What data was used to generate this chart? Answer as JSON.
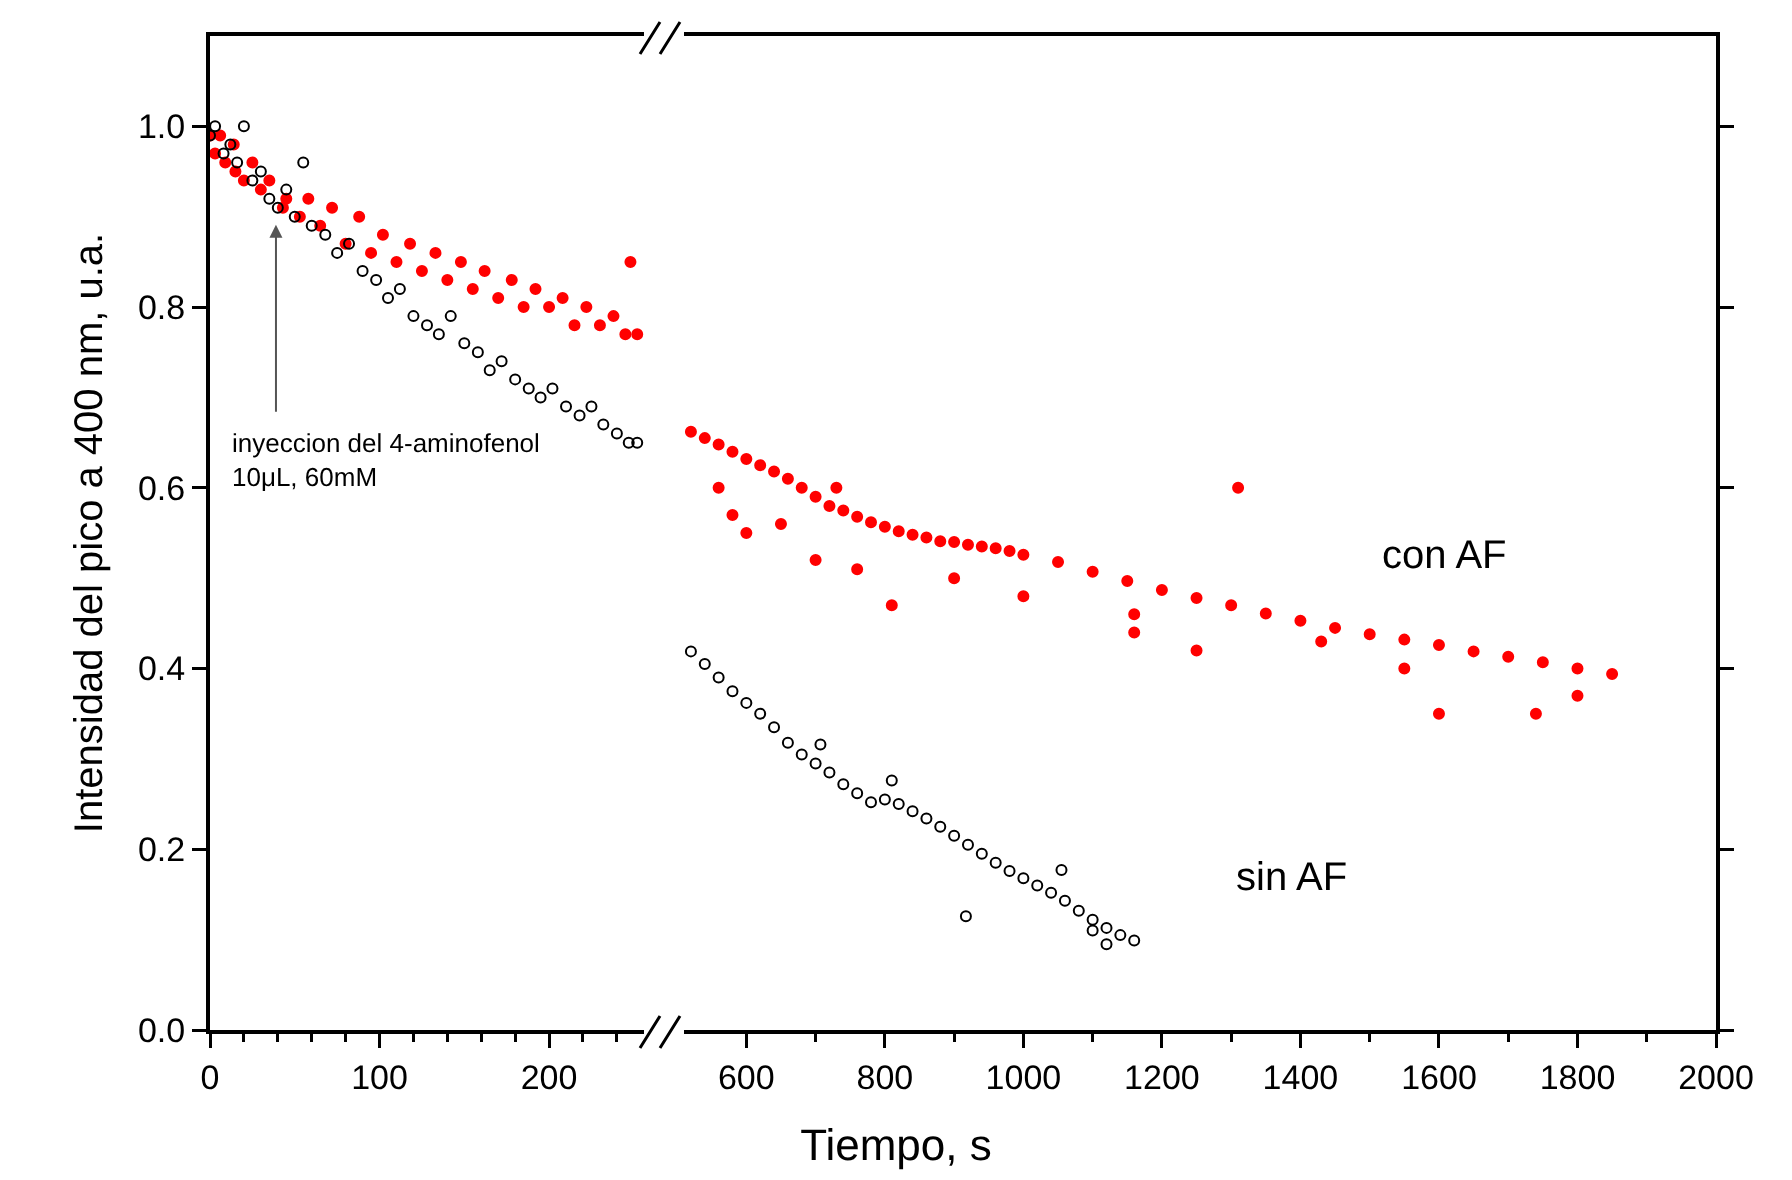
{
  "chart_data": [
    {
      "type": "scatter",
      "ylabel": "Intensidad del pico a 400 nm, u.a.",
      "xlim": [
        0,
        256
      ],
      "xticks": [
        0,
        100,
        200
      ],
      "ylim": [
        0,
        1.1
      ],
      "yticks": [
        {
          "value": 0,
          "label": "0.0"
        },
        {
          "value": 0.2,
          "label": "0.2"
        },
        {
          "value": 0.4,
          "label": "0.4"
        },
        {
          "value": 0.6,
          "label": "0.6"
        },
        {
          "value": 0.8,
          "label": "0.8"
        },
        {
          "value": 1,
          "label": "1.0"
        }
      ],
      "grid": false,
      "annotations": [
        "inyeccion del 4-aminofenol\n10μL, 60mM"
      ],
      "series": [
        {
          "color": "#ff0000",
          "marker": "circle",
          "x": [
            0,
            3,
            6,
            9,
            14,
            15,
            20,
            25,
            30,
            35,
            43,
            45,
            53,
            58,
            65,
            72,
            80,
            88,
            95,
            102,
            110,
            118,
            125,
            133,
            140,
            148,
            155,
            162,
            170,
            178,
            185,
            192,
            200,
            208,
            215,
            222,
            230,
            238,
            245,
            248,
            252
          ],
          "values": [
            0.99,
            0.97,
            0.99,
            0.96,
            0.98,
            0.95,
            0.94,
            0.96,
            0.93,
            0.94,
            0.91,
            0.92,
            0.9,
            0.92,
            0.89,
            0.91,
            0.87,
            0.9,
            0.86,
            0.88,
            0.85,
            0.87,
            0.84,
            0.86,
            0.83,
            0.85,
            0.82,
            0.84,
            0.81,
            0.83,
            0.8,
            0.82,
            0.8,
            0.81,
            0.78,
            0.8,
            0.78,
            0.79,
            0.77,
            0.85,
            0.77
          ]
        },
        {
          "color": "#000000",
          "marker": "circle-open",
          "x": [
            0,
            3,
            8,
            12,
            16,
            20,
            25,
            30,
            35,
            40,
            45,
            50,
            55,
            60,
            68,
            75,
            82,
            90,
            98,
            105,
            112,
            120,
            128,
            135,
            142,
            150,
            158,
            165,
            172,
            180,
            188,
            195,
            202,
            210,
            218,
            225,
            232,
            240,
            247,
            252
          ],
          "values": [
            0.99,
            1.0,
            0.97,
            0.98,
            0.96,
            1.0,
            0.94,
            0.95,
            0.92,
            0.91,
            0.93,
            0.9,
            0.96,
            0.89,
            0.88,
            0.86,
            0.87,
            0.84,
            0.83,
            0.81,
            0.82,
            0.79,
            0.78,
            0.77,
            0.79,
            0.76,
            0.75,
            0.73,
            0.74,
            0.72,
            0.71,
            0.7,
            0.71,
            0.69,
            0.68,
            0.69,
            0.67,
            0.66,
            0.65,
            0.65
          ]
        }
      ]
    },
    {
      "type": "scatter",
      "xlabel": "Tiempo, s",
      "xlim": [
        510,
        2000
      ],
      "xticks": [
        600,
        800,
        1000,
        1200,
        1400,
        1600,
        1800,
        2000
      ],
      "ylim": [
        0,
        1.1
      ],
      "yticks": [
        0,
        0.2,
        0.4,
        0.6,
        0.8,
        1
      ],
      "tick_labels": "x",
      "grid": false,
      "annotations": [
        "con AF",
        "sin AF"
      ],
      "series": [
        {
          "color": "#ff0000",
          "marker": "circle",
          "x": [
            520,
            540,
            560,
            580,
            600,
            620,
            640,
            660,
            680,
            700,
            720,
            740,
            760,
            780,
            800,
            820,
            840,
            860,
            880,
            900,
            920,
            940,
            960,
            980,
            1000,
            1050,
            1100,
            1150,
            1200,
            1250,
            1300,
            1350,
            1400,
            1450,
            1500,
            1550,
            1600,
            1650,
            1700,
            1750,
            1800,
            1850,
            560,
            580,
            600,
            650,
            700,
            730,
            760,
            810,
            900,
            1000,
            1160,
            1160,
            1310,
            1250,
            1430,
            1600,
            1740,
            1550,
            1800
          ],
          "values": [
            0.662,
            0.655,
            0.648,
            0.64,
            0.632,
            0.625,
            0.618,
            0.61,
            0.6,
            0.59,
            0.58,
            0.575,
            0.568,
            0.562,
            0.557,
            0.552,
            0.548,
            0.545,
            0.541,
            0.54,
            0.537,
            0.535,
            0.533,
            0.53,
            0.526,
            0.518,
            0.507,
            0.497,
            0.487,
            0.478,
            0.47,
            0.461,
            0.453,
            0.445,
            0.438,
            0.432,
            0.426,
            0.419,
            0.413,
            0.407,
            0.4,
            0.394,
            0.6,
            0.57,
            0.55,
            0.56,
            0.52,
            0.6,
            0.51,
            0.47,
            0.5,
            0.48,
            0.46,
            0.44,
            0.6,
            0.42,
            0.43,
            0.35,
            0.35,
            0.4,
            0.37
          ]
        },
        {
          "color": "#000000",
          "marker": "circle-open",
          "x": [
            520,
            540,
            560,
            580,
            600,
            620,
            640,
            660,
            680,
            700,
            720,
            740,
            760,
            780,
            800,
            820,
            840,
            860,
            880,
            900,
            920,
            940,
            960,
            980,
            1000,
            1020,
            1040,
            1060,
            1080,
            1100,
            1120,
            1140,
            1160,
            707,
            810,
            917,
            1055,
            1100,
            1120
          ],
          "values": [
            0.419,
            0.405,
            0.39,
            0.375,
            0.362,
            0.35,
            0.335,
            0.318,
            0.305,
            0.295,
            0.285,
            0.272,
            0.262,
            0.252,
            0.255,
            0.25,
            0.242,
            0.234,
            0.225,
            0.215,
            0.205,
            0.195,
            0.185,
            0.176,
            0.168,
            0.16,
            0.152,
            0.143,
            0.132,
            0.122,
            0.113,
            0.105,
            0.099,
            0.316,
            0.276,
            0.126,
            0.177,
            0.11,
            0.095
          ]
        }
      ]
    }
  ]
}
